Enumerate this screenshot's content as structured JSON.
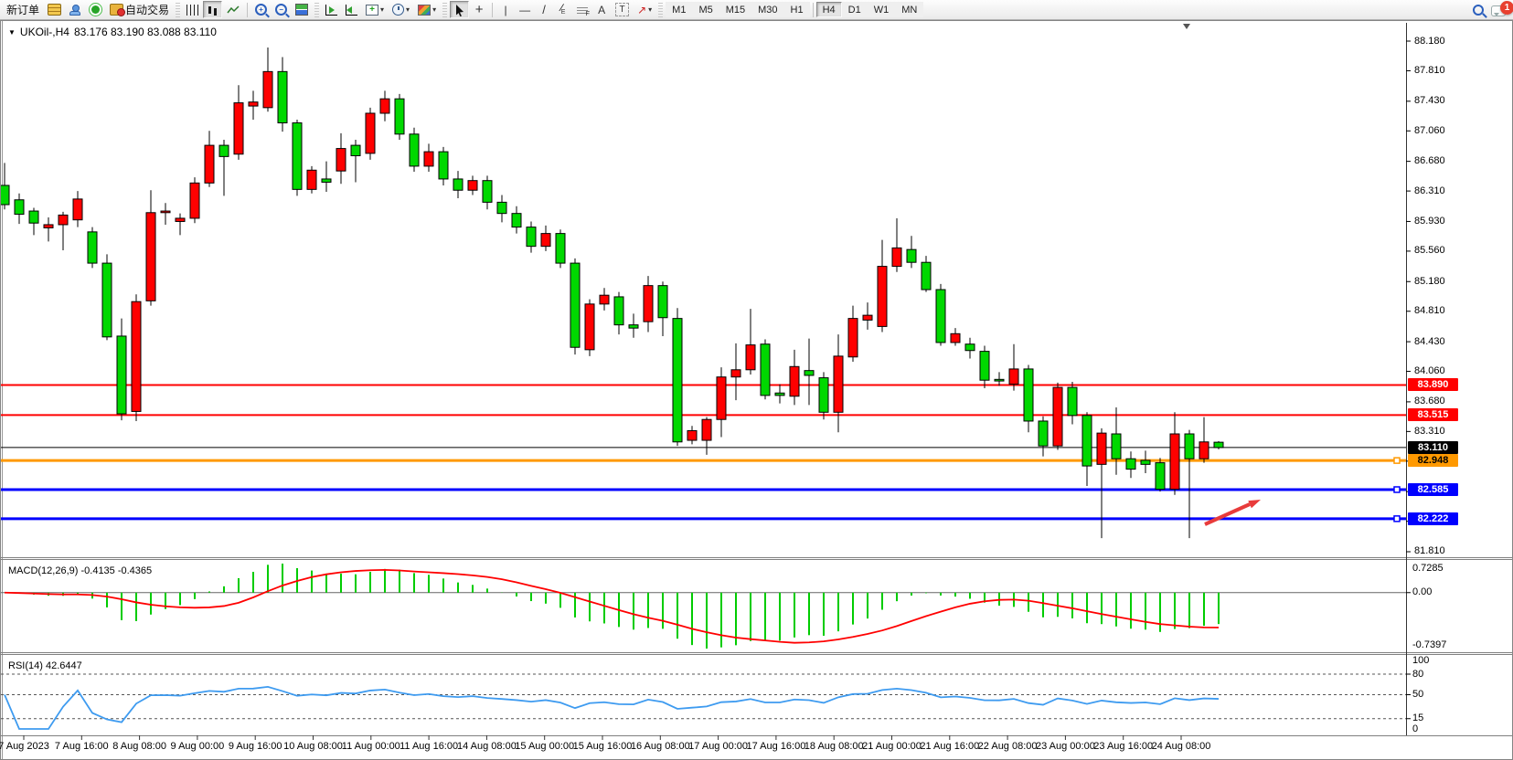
{
  "toolbar": {
    "new_order_label": "新订单",
    "autotrade_label": "自动交易",
    "timeframes": [
      "M1",
      "M5",
      "M15",
      "M30",
      "H1",
      "H4",
      "D1",
      "W1",
      "MN"
    ],
    "active_timeframe": "H4",
    "notification_count": "1"
  },
  "chart": {
    "symbol_dropdown_icon": "▼",
    "title": "UKOil-,H4",
    "ohlc_display": "83.176 83.190 83.088 83.110",
    "colors": {
      "bull": "#FF0000",
      "bear": "#00D800",
      "wick": "#000000",
      "axis_text": "#000000",
      "panel_border": "#808080"
    },
    "price_ticks": [
      88.18,
      87.81,
      87.43,
      87.06,
      86.68,
      86.31,
      85.93,
      85.56,
      85.18,
      84.81,
      84.43,
      84.06,
      83.68,
      83.31,
      82.94,
      82.56,
      82.19,
      81.81
    ],
    "time_labels": [
      "7 Aug 2023",
      "7 Aug 16:00",
      "8 Aug 08:00",
      "9 Aug 00:00",
      "9 Aug 16:00",
      "10 Aug 08:00",
      "11 Aug 00:00",
      "11 Aug 16:00",
      "14 Aug 08:00",
      "15 Aug 00:00",
      "15 Aug 16:00",
      "16 Aug 08:00",
      "17 Aug 00:00",
      "17 Aug 16:00",
      "18 Aug 08:00",
      "21 Aug 00:00",
      "21 Aug 16:00",
      "22 Aug 08:00",
      "23 Aug 00:00",
      "23 Aug 16:00",
      "24 Aug 08:00"
    ],
    "lines": [
      {
        "price": 83.89,
        "label": "83.890",
        "color": "#FF0000",
        "width": 2,
        "text_color": "#FFFFFF",
        "handle": false
      },
      {
        "price": 83.515,
        "label": "83.515",
        "color": "#FF0000",
        "width": 2,
        "text_color": "#FFFFFF",
        "handle": false
      },
      {
        "price": 83.11,
        "label": "83.110",
        "color": "#000000",
        "width": 1,
        "text_color": "#FFFFFF",
        "handle": false
      },
      {
        "price": 82.948,
        "label": "82.948",
        "color": "#FF9900",
        "width": 3,
        "text_color": "#000000",
        "handle": true
      },
      {
        "price": 82.585,
        "label": "82.585",
        "color": "#0000FF",
        "width": 3,
        "text_color": "#FFFFFF",
        "handle": true
      },
      {
        "price": 82.222,
        "label": "82.222",
        "color": "#0000FF",
        "width": 3,
        "text_color": "#FFFFFF",
        "handle": true
      }
    ],
    "arrow": {
      "color": "#E83B3B"
    },
    "candles": [
      [
        86.38,
        86.66,
        86.08,
        86.14
      ],
      [
        86.2,
        86.28,
        85.9,
        86.02
      ],
      [
        86.06,
        86.1,
        85.76,
        85.91
      ],
      [
        85.85,
        85.98,
        85.68,
        85.89
      ],
      [
        85.89,
        86.05,
        85.57,
        86.01
      ],
      [
        85.95,
        86.31,
        85.86,
        86.21
      ],
      [
        85.8,
        85.86,
        85.35,
        85.41
      ],
      [
        85.41,
        85.52,
        84.45,
        84.49
      ],
      [
        84.5,
        84.72,
        83.45,
        83.53
      ],
      [
        83.56,
        85.02,
        83.44,
        84.93
      ],
      [
        84.94,
        86.32,
        84.88,
        86.04
      ],
      [
        86.04,
        86.16,
        85.89,
        86.06
      ],
      [
        85.93,
        86.03,
        85.76,
        85.97
      ],
      [
        85.97,
        86.48,
        85.91,
        86.41
      ],
      [
        86.41,
        87.06,
        86.36,
        86.88
      ],
      [
        86.88,
        86.95,
        86.25,
        86.74
      ],
      [
        86.77,
        87.63,
        86.7,
        87.41
      ],
      [
        87.37,
        87.56,
        87.2,
        87.42
      ],
      [
        87.35,
        88.1,
        87.3,
        87.8
      ],
      [
        87.8,
        87.98,
        87.05,
        87.16
      ],
      [
        87.16,
        87.2,
        86.25,
        86.33
      ],
      [
        86.33,
        86.62,
        86.28,
        86.57
      ],
      [
        86.46,
        86.68,
        86.3,
        86.42
      ],
      [
        86.56,
        87.03,
        86.4,
        86.84
      ],
      [
        86.88,
        86.95,
        86.42,
        86.75
      ],
      [
        86.78,
        87.35,
        86.7,
        87.28
      ],
      [
        87.28,
        87.56,
        87.18,
        87.46
      ],
      [
        87.46,
        87.52,
        86.95,
        87.02
      ],
      [
        87.02,
        87.1,
        86.55,
        86.62
      ],
      [
        86.62,
        86.9,
        86.55,
        86.8
      ],
      [
        86.8,
        86.86,
        86.38,
        86.46
      ],
      [
        86.46,
        86.56,
        86.22,
        86.32
      ],
      [
        86.32,
        86.5,
        86.26,
        86.44
      ],
      [
        86.44,
        86.5,
        86.08,
        86.17
      ],
      [
        86.17,
        86.26,
        85.92,
        86.03
      ],
      [
        86.03,
        86.12,
        85.78,
        85.86
      ],
      [
        85.86,
        85.93,
        85.54,
        85.62
      ],
      [
        85.62,
        85.88,
        85.56,
        85.78
      ],
      [
        85.78,
        85.83,
        85.35,
        85.41
      ],
      [
        85.41,
        85.47,
        84.27,
        84.36
      ],
      [
        84.33,
        84.96,
        84.25,
        84.9
      ],
      [
        84.9,
        85.1,
        84.82,
        85.01
      ],
      [
        84.99,
        85.05,
        84.52,
        84.64
      ],
      [
        84.64,
        84.78,
        84.48,
        84.6
      ],
      [
        84.68,
        85.25,
        84.55,
        85.13
      ],
      [
        85.13,
        85.18,
        84.5,
        84.73
      ],
      [
        84.72,
        84.85,
        83.13,
        83.18
      ],
      [
        83.2,
        83.38,
        83.15,
        83.32
      ],
      [
        83.2,
        83.49,
        83.02,
        83.46
      ],
      [
        83.46,
        84.11,
        83.24,
        83.99
      ],
      [
        83.99,
        84.41,
        83.7,
        84.08
      ],
      [
        84.08,
        84.84,
        84.02,
        84.39
      ],
      [
        84.4,
        84.46,
        83.71,
        83.76
      ],
      [
        83.79,
        83.9,
        83.66,
        83.76
      ],
      [
        83.75,
        84.33,
        83.64,
        84.12
      ],
      [
        84.07,
        84.47,
        83.64,
        84.01
      ],
      [
        83.98,
        84.05,
        83.46,
        83.55
      ],
      [
        83.55,
        84.52,
        83.3,
        84.25
      ],
      [
        84.24,
        84.88,
        84.18,
        84.72
      ],
      [
        84.7,
        84.92,
        84.58,
        84.76
      ],
      [
        84.62,
        85.7,
        84.55,
        85.37
      ],
      [
        85.37,
        85.97,
        85.3,
        85.6
      ],
      [
        85.58,
        85.75,
        85.35,
        85.42
      ],
      [
        85.42,
        85.5,
        85.05,
        85.08
      ],
      [
        85.08,
        85.15,
        84.38,
        84.42
      ],
      [
        84.42,
        84.6,
        84.38,
        84.53
      ],
      [
        84.4,
        84.48,
        84.22,
        84.32
      ],
      [
        84.31,
        84.38,
        83.85,
        83.95
      ],
      [
        83.96,
        84.05,
        83.88,
        83.94
      ],
      [
        83.9,
        84.4,
        83.82,
        84.09
      ],
      [
        84.09,
        84.14,
        83.3,
        83.44
      ],
      [
        83.44,
        83.5,
        83.0,
        83.13
      ],
      [
        83.13,
        83.92,
        83.08,
        83.86
      ],
      [
        83.86,
        83.93,
        83.4,
        83.51
      ],
      [
        83.51,
        83.55,
        82.63,
        82.88
      ],
      [
        82.9,
        83.35,
        81.98,
        83.29
      ],
      [
        83.28,
        83.61,
        82.77,
        82.97
      ],
      [
        82.97,
        83.06,
        82.73,
        82.84
      ],
      [
        82.95,
        83.07,
        82.79,
        82.9
      ],
      [
        82.92,
        82.98,
        82.56,
        82.59
      ],
      [
        82.59,
        83.55,
        82.52,
        83.28
      ],
      [
        83.28,
        83.33,
        81.98,
        82.97
      ],
      [
        82.97,
        83.49,
        82.92,
        83.18
      ],
      [
        83.176,
        83.19,
        83.088,
        83.11
      ]
    ]
  },
  "macd": {
    "label": "MACD(12,26,9)",
    "values_text": "-0.4135 -0.4365",
    "axis_labels": [
      "0.7285",
      "0.00",
      "-0.7397"
    ],
    "histogram_color": "#00CC00",
    "signal_color": "#FF0000"
  },
  "rsi": {
    "label": "RSI(14)",
    "value_text": "42.6447",
    "axis_labels": [
      "100",
      "80",
      "50",
      "15",
      "0"
    ],
    "axis_values": [
      100,
      80,
      50,
      15,
      0
    ],
    "levels": [
      80,
      50,
      15
    ],
    "line_color": "#3E9BF0"
  }
}
